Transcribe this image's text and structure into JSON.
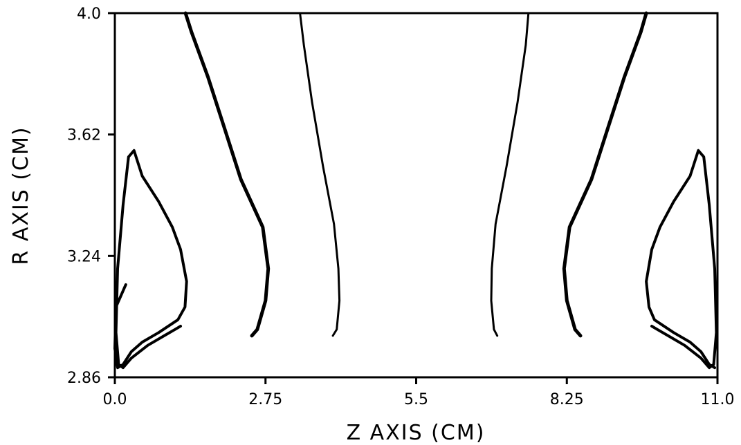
{
  "chart_data": {
    "type": "line",
    "title": "",
    "xlabel": "Z AXIS (CM)",
    "ylabel": "R AXIS (CM)",
    "xlim": [
      0.0,
      11.0
    ],
    "ylim": [
      2.86,
      4.0
    ],
    "xticks": [
      0.0,
      2.75,
      5.5,
      8.25,
      11.0
    ],
    "xtick_labels": [
      "0.0",
      "2.75",
      "5.5",
      "8.25",
      "11.0"
    ],
    "yticks": [
      2.86,
      3.24,
      3.62,
      4.0
    ],
    "ytick_labels": [
      "2.86",
      "3.24",
      "3.62",
      "4.0"
    ],
    "grid": false,
    "series": [
      {
        "stroke": 5,
        "x": [
          1.29,
          1.4,
          1.7,
          2.0,
          2.3,
          2.7,
          2.8,
          2.75,
          2.6,
          2.5
        ],
        "y": [
          4.0,
          3.94,
          3.8,
          3.64,
          3.48,
          3.33,
          3.2,
          3.1,
          3.01,
          2.99
        ]
      },
      {
        "stroke": 3,
        "x": [
          3.38,
          3.45,
          3.6,
          3.8,
          4.0,
          4.08,
          4.1,
          4.05,
          3.98
        ],
        "y": [
          4.0,
          3.9,
          3.72,
          3.52,
          3.34,
          3.2,
          3.1,
          3.01,
          2.99
        ]
      },
      {
        "stroke": 3,
        "x": [
          7.55,
          7.5,
          7.35,
          7.15,
          6.95,
          6.88,
          6.87,
          6.92,
          6.98
        ],
        "y": [
          4.0,
          3.9,
          3.72,
          3.52,
          3.34,
          3.2,
          3.1,
          3.01,
          2.99
        ]
      },
      {
        "stroke": 5,
        "x": [
          9.7,
          9.6,
          9.3,
          9.0,
          8.7,
          8.3,
          8.2,
          8.25,
          8.4,
          8.5
        ],
        "y": [
          4.0,
          3.94,
          3.8,
          3.64,
          3.48,
          3.33,
          3.2,
          3.1,
          3.01,
          2.99
        ]
      },
      {
        "stroke": 4,
        "x": [
          1.2,
          1.1,
          0.9,
          0.6,
          0.3,
          0.15,
          0.07,
          0.02,
          0.05,
          0.15,
          0.25,
          0.35,
          0.5,
          0.8,
          1.05,
          1.2,
          1.31,
          1.28,
          1.15,
          0.8,
          0.5,
          0.3,
          0.15,
          0.05,
          0.0,
          0.02,
          0.2
        ],
        "y": [
          3.02,
          3.01,
          2.99,
          2.96,
          2.92,
          2.89,
          2.9,
          3.0,
          3.2,
          3.4,
          3.55,
          3.57,
          3.49,
          3.41,
          3.33,
          3.26,
          3.16,
          3.08,
          3.04,
          3.0,
          2.97,
          2.94,
          2.9,
          2.89,
          2.95,
          3.08,
          3.15
        ]
      },
      {
        "stroke": 4,
        "x": [
          9.8,
          9.9,
          10.1,
          10.4,
          10.7,
          10.85,
          10.93,
          10.98,
          10.95,
          10.85,
          10.75,
          10.65,
          10.5,
          10.2,
          9.95,
          9.8,
          9.7,
          9.75,
          9.85,
          10.2,
          10.5,
          10.7,
          10.85,
          10.95
        ],
        "y": [
          3.02,
          3.01,
          2.99,
          2.96,
          2.92,
          2.89,
          2.9,
          3.0,
          3.2,
          3.4,
          3.55,
          3.57,
          3.49,
          3.41,
          3.33,
          3.26,
          3.16,
          3.08,
          3.04,
          3.0,
          2.97,
          2.94,
          2.9,
          2.89
        ]
      }
    ]
  }
}
